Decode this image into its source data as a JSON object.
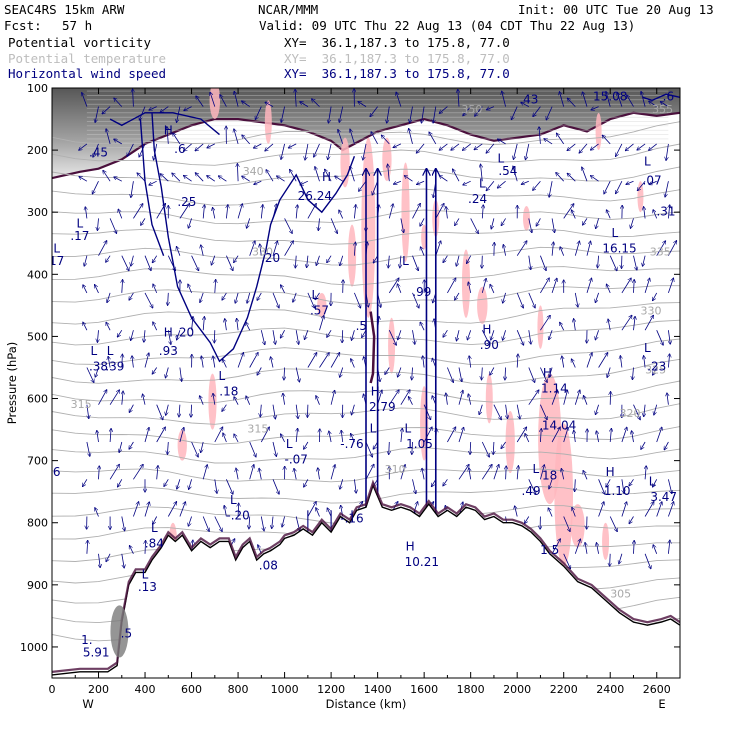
{
  "header": {
    "model": "SEAC4RS 15km ARW",
    "center": "NCAR/MMM",
    "init": "Init: 00 UTC Tue 20 Aug 13",
    "fcst_label": "Fcst:",
    "fcst_value": "57 h",
    "valid": "Valid: 09 UTC Thu 22 Aug 13 (04 CDT Thu 22 Aug 13)",
    "fields": [
      {
        "name": "Potential vorticity",
        "xy": "XY=  36.1,187.3 to 175.8, 77.0",
        "color": "#000000"
      },
      {
        "name": "Potential temperature",
        "xy": "XY=  36.1,187.3 to 175.8, 77.0",
        "color": "#bdbdbd"
      },
      {
        "name": "Horizontal wind speed",
        "xy": "XY=  36.1,187.3 to 175.8, 77.0",
        "color": "#000080"
      }
    ]
  },
  "chart_data": {
    "type": "cross-section",
    "xlabel": "Distance (km)",
    "ylabel": "Pressure (hPa)",
    "xlim": [
      0,
      2700
    ],
    "ylim": [
      1050,
      100
    ],
    "x_ticks": [
      0,
      200,
      400,
      600,
      800,
      1000,
      1200,
      1400,
      1600,
      1800,
      2000,
      2200,
      2400,
      2600
    ],
    "y_ticks": [
      100,
      200,
      300,
      400,
      500,
      600,
      700,
      800,
      900,
      1000
    ],
    "end_labels": {
      "left": "W",
      "right": "E"
    },
    "terrain": [
      [
        0,
        1045
      ],
      [
        120,
        1040
      ],
      [
        190,
        1040
      ],
      [
        240,
        1040
      ],
      [
        280,
        1030
      ],
      [
        300,
        960
      ],
      [
        330,
        900
      ],
      [
        360,
        880
      ],
      [
        400,
        880
      ],
      [
        430,
        860
      ],
      [
        450,
        850
      ],
      [
        470,
        840
      ],
      [
        500,
        820
      ],
      [
        530,
        830
      ],
      [
        560,
        820
      ],
      [
        600,
        845
      ],
      [
        640,
        830
      ],
      [
        680,
        840
      ],
      [
        720,
        830
      ],
      [
        760,
        830
      ],
      [
        790,
        860
      ],
      [
        820,
        840
      ],
      [
        850,
        830
      ],
      [
        880,
        860
      ],
      [
        910,
        850
      ],
      [
        940,
        845
      ],
      [
        980,
        835
      ],
      [
        1000,
        825
      ],
      [
        1040,
        820
      ],
      [
        1080,
        810
      ],
      [
        1120,
        820
      ],
      [
        1160,
        800
      ],
      [
        1200,
        815
      ],
      [
        1240,
        790
      ],
      [
        1280,
        800
      ],
      [
        1310,
        780
      ],
      [
        1350,
        775
      ],
      [
        1380,
        740
      ],
      [
        1420,
        775
      ],
      [
        1460,
        780
      ],
      [
        1500,
        775
      ],
      [
        1540,
        780
      ],
      [
        1580,
        790
      ],
      [
        1620,
        770
      ],
      [
        1660,
        790
      ],
      [
        1700,
        780
      ],
      [
        1740,
        790
      ],
      [
        1780,
        775
      ],
      [
        1820,
        780
      ],
      [
        1860,
        795
      ],
      [
        1900,
        790
      ],
      [
        1940,
        800
      ],
      [
        1980,
        800
      ],
      [
        2020,
        805
      ],
      [
        2060,
        815
      ],
      [
        2100,
        830
      ],
      [
        2140,
        850
      ],
      [
        2200,
        870
      ],
      [
        2260,
        895
      ],
      [
        2320,
        905
      ],
      [
        2380,
        925
      ],
      [
        2440,
        945
      ],
      [
        2500,
        960
      ],
      [
        2560,
        965
      ],
      [
        2620,
        960
      ],
      [
        2660,
        955
      ],
      [
        2700,
        965
      ]
    ],
    "theta_labels": [
      {
        "x": 2580,
        "p": 140,
        "text": "355"
      },
      {
        "x": 820,
        "p": 240,
        "text": "340"
      },
      {
        "x": 860,
        "p": 370,
        "text": "330"
      },
      {
        "x": 2570,
        "p": 370,
        "text": "335"
      },
      {
        "x": 2530,
        "p": 465,
        "text": "330"
      },
      {
        "x": 2550,
        "p": 560,
        "text": "325"
      },
      {
        "x": 80,
        "p": 615,
        "text": "315"
      },
      {
        "x": 2440,
        "p": 630,
        "text": "320"
      },
      {
        "x": 840,
        "p": 655,
        "text": "315"
      },
      {
        "x": 2400,
        "p": 920,
        "text": "305"
      },
      {
        "x": 1430,
        "p": 720,
        "text": "310"
      },
      {
        "x": 1760,
        "p": 140,
        "text": "350"
      }
    ],
    "annotations": [
      {
        "x": 2050,
        "p": 125,
        "text": ".43"
      },
      {
        "x": 2400,
        "p": 120,
        "text": "15.08"
      },
      {
        "x": 2650,
        "p": 100,
        "text": "L"
      },
      {
        "x": 2650,
        "p": 120,
        "text": ".6"
      },
      {
        "x": 200,
        "p": 210,
        "text": ".45"
      },
      {
        "x": 500,
        "p": 175,
        "text": "H"
      },
      {
        "x": 550,
        "p": 205,
        "text": ".6"
      },
      {
        "x": 580,
        "p": 290,
        "text": ".25"
      },
      {
        "x": 1180,
        "p": 250,
        "text": "H"
      },
      {
        "x": 1130,
        "p": 280,
        "text": "26.24"
      },
      {
        "x": 1930,
        "p": 220,
        "text": "L"
      },
      {
        "x": 1960,
        "p": 240,
        "text": ".54"
      },
      {
        "x": 1850,
        "p": 260,
        "text": "L"
      },
      {
        "x": 1830,
        "p": 285,
        "text": ".24"
      },
      {
        "x": 2560,
        "p": 225,
        "text": "L"
      },
      {
        "x": 2580,
        "p": 255,
        "text": ".07"
      },
      {
        "x": 2640,
        "p": 305,
        "text": ".31"
      },
      {
        "x": 120,
        "p": 325,
        "text": "L"
      },
      {
        "x": 120,
        "p": 345,
        "text": ".17"
      },
      {
        "x": 20,
        "p": 365,
        "text": "L"
      },
      {
        "x": 20,
        "p": 385,
        "text": "17"
      },
      {
        "x": 2420,
        "p": 340,
        "text": "L"
      },
      {
        "x": 2440,
        "p": 365,
        "text": "16.15"
      },
      {
        "x": 940,
        "p": 380,
        "text": ".20"
      },
      {
        "x": 1520,
        "p": 385,
        "text": "L"
      },
      {
        "x": 1590,
        "p": 435,
        "text": ".99"
      },
      {
        "x": 1130,
        "p": 440,
        "text": "L"
      },
      {
        "x": 1150,
        "p": 465,
        "text": ".57"
      },
      {
        "x": 1330,
        "p": 490,
        "text": ".5"
      },
      {
        "x": 500,
        "p": 500,
        "text": "H"
      },
      {
        "x": 570,
        "p": 500,
        "text": ".20"
      },
      {
        "x": 500,
        "p": 530,
        "text": ".93"
      },
      {
        "x": 1870,
        "p": 495,
        "text": "H"
      },
      {
        "x": 1880,
        "p": 520,
        "text": ".90"
      },
      {
        "x": 180,
        "p": 530,
        "text": "L"
      },
      {
        "x": 250,
        "p": 530,
        "text": "L"
      },
      {
        "x": 200,
        "p": 555,
        "text": ".38"
      },
      {
        "x": 270,
        "p": 555,
        "text": ".39"
      },
      {
        "x": 2560,
        "p": 525,
        "text": "L"
      },
      {
        "x": 2600,
        "p": 555,
        "text": ".23"
      },
      {
        "x": 730,
        "p": 570,
        "text": "L"
      },
      {
        "x": 760,
        "p": 595,
        "text": ".18"
      },
      {
        "x": 2130,
        "p": 565,
        "text": "H"
      },
      {
        "x": 2160,
        "p": 590,
        "text": "1.14"
      },
      {
        "x": 1390,
        "p": 595,
        "text": "H"
      },
      {
        "x": 1420,
        "p": 620,
        "text": "2.79"
      },
      {
        "x": 2180,
        "p": 650,
        "text": "14.04"
      },
      {
        "x": 1380,
        "p": 655,
        "text": "L"
      },
      {
        "x": 1530,
        "p": 655,
        "text": "L"
      },
      {
        "x": 1290,
        "p": 680,
        "text": "-.76"
      },
      {
        "x": 1580,
        "p": 680,
        "text": "1.05"
      },
      {
        "x": 1020,
        "p": 680,
        "text": "L"
      },
      {
        "x": 1050,
        "p": 705,
        "text": "-.07"
      },
      {
        "x": 2080,
        "p": 720,
        "text": "L"
      },
      {
        "x": 2140,
        "p": 730,
        "text": "18"
      },
      {
        "x": 2400,
        "p": 725,
        "text": "H"
      },
      {
        "x": 2430,
        "p": 755,
        "text": "1.10"
      },
      {
        "x": 2060,
        "p": 755,
        "text": ".49"
      },
      {
        "x": 2580,
        "p": 740,
        "text": "L"
      },
      {
        "x": 2630,
        "p": 765,
        "text": "3.47"
      },
      {
        "x": 20,
        "p": 725,
        "text": "6"
      },
      {
        "x": 780,
        "p": 770,
        "text": "L"
      },
      {
        "x": 800,
        "p": 795,
        "text": "-.20"
      },
      {
        "x": 1290,
        "p": 800,
        "text": "-.16"
      },
      {
        "x": 440,
        "p": 815,
        "text": "L"
      },
      {
        "x": 440,
        "p": 840,
        "text": ".84"
      },
      {
        "x": 1540,
        "p": 845,
        "text": "H"
      },
      {
        "x": 1590,
        "p": 870,
        "text": "10.21"
      },
      {
        "x": 2140,
        "p": 850,
        "text": "1.5"
      },
      {
        "x": 930,
        "p": 875,
        "text": ".08"
      },
      {
        "x": 400,
        "p": 890,
        "text": "L"
      },
      {
        "x": 410,
        "p": 910,
        "text": ".13"
      },
      {
        "x": 320,
        "p": 985,
        "text": ".5"
      },
      {
        "x": 150,
        "p": 995,
        "text": "1."
      },
      {
        "x": 190,
        "p": 1015,
        "text": "5.91"
      }
    ]
  }
}
